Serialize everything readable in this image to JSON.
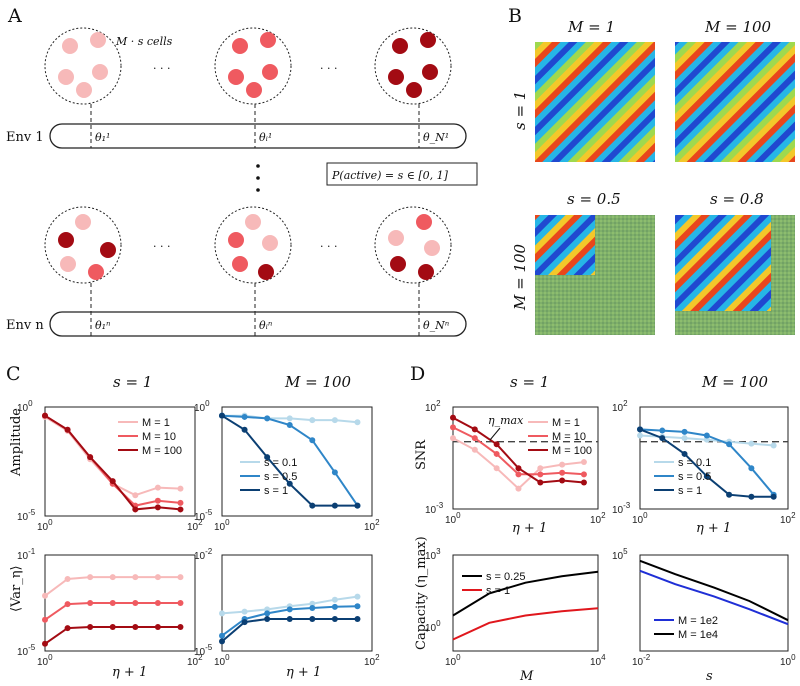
{
  "panel_letters": {
    "a": "A",
    "b": "B",
    "c": "C",
    "d": "D"
  },
  "panel_a": {
    "cells_label": "M · s cells",
    "dots": "· · ·",
    "env1_label": "Env 1",
    "envn_label": "Env n",
    "theta_1": "θ₁¹",
    "theta_i": "θᵢ¹",
    "theta_N": "θ_N¹",
    "thetan_1": "θ₁ⁿ",
    "thetan_i": "θᵢⁿ",
    "thetan_N": "θ_Nⁿ",
    "p_active": "P(active) = s ∈ [0, 1]",
    "colors": {
      "light": "#f7b9b9",
      "mid": "#ef5a60",
      "dark": "#a30b13"
    }
  },
  "panel_b": {
    "t_m1": "M = 1",
    "t_m100": "M = 100",
    "t_s05": "s = 0.5",
    "t_s08": "s = 0.8",
    "row_s1": "s = 1",
    "row_m100": "M = 100"
  },
  "chart_data": [
    {
      "type": "line",
      "title": "s = 1",
      "ylabel": "Amplitude",
      "xlabel": "",
      "xscale": "log",
      "yscale": "log",
      "xlim": [
        1,
        100
      ],
      "ylim": [
        1e-05,
        1
      ],
      "x_ticks": [
        "10^0",
        "10^2"
      ],
      "y_ticks": [
        "10^0",
        "10^-5"
      ],
      "legend": [
        "M = 1",
        "M = 10",
        "M = 100"
      ],
      "series": [
        {
          "name": "M = 1",
          "color": "#f7b9b9",
          "x": [
            1,
            2,
            4,
            8,
            16,
            32,
            64
          ],
          "y": [
            0.35,
            0.08,
            0.004,
            0.0003,
            9e-05,
            0.0002,
            0.00018
          ]
        },
        {
          "name": "M = 10",
          "color": "#ef5a60",
          "x": [
            1,
            2,
            4,
            8,
            16,
            32,
            64
          ],
          "y": [
            0.4,
            0.09,
            0.005,
            0.0003,
            3e-05,
            5e-05,
            4e-05
          ]
        },
        {
          "name": "M = 100",
          "color": "#a30b13",
          "x": [
            1,
            2,
            4,
            8,
            16,
            32,
            64
          ],
          "y": [
            0.4,
            0.09,
            0.005,
            0.0004,
            2e-05,
            2.5e-05,
            2e-05
          ]
        }
      ]
    },
    {
      "type": "line",
      "title": "M = 100",
      "ylabel": "",
      "xlabel": "",
      "xscale": "log",
      "yscale": "log",
      "xlim": [
        1,
        100
      ],
      "ylim": [
        1e-05,
        1
      ],
      "x_ticks": [
        "10^0",
        "10^2"
      ],
      "y_ticks": [
        "10^0",
        "10^-5"
      ],
      "legend": [
        "s = 0.1",
        "s = 0.5",
        "s = 1"
      ],
      "series": [
        {
          "name": "s = 0.1",
          "color": "#b7d9ea",
          "x": [
            1,
            2,
            4,
            8,
            16,
            32,
            64
          ],
          "y": [
            0.4,
            0.4,
            0.3,
            0.3,
            0.25,
            0.25,
            0.2
          ]
        },
        {
          "name": "s = 0.5",
          "color": "#2f86c8",
          "x": [
            1,
            2,
            4,
            8,
            16,
            32,
            64
          ],
          "y": [
            0.4,
            0.35,
            0.3,
            0.15,
            0.03,
            0.001,
            3e-05
          ]
        },
        {
          "name": "s = 1",
          "color": "#0b3f73",
          "x": [
            1,
            2,
            4,
            8,
            16,
            32,
            64
          ],
          "y": [
            0.4,
            0.09,
            0.005,
            0.0003,
            3e-05,
            3e-05,
            3e-05
          ]
        }
      ]
    },
    {
      "type": "line",
      "title": "",
      "ylabel": "⟨Var_η⟩",
      "xlabel": "η + 1",
      "xscale": "log",
      "yscale": "log",
      "xlim": [
        1,
        100
      ],
      "ylim": [
        1e-05,
        0.1
      ],
      "x_ticks": [
        "10^0",
        "10^2"
      ],
      "y_ticks": [
        "10^-1",
        "10^-5"
      ],
      "series": [
        {
          "name": "M = 1",
          "color": "#f7b9b9",
          "x": [
            1,
            2,
            4,
            8,
            16,
            32,
            64
          ],
          "y": [
            0.002,
            0.01,
            0.012,
            0.012,
            0.012,
            0.012,
            0.012
          ]
        },
        {
          "name": "M = 10",
          "color": "#ef5a60",
          "x": [
            1,
            2,
            4,
            8,
            16,
            32,
            64
          ],
          "y": [
            0.0002,
            0.0009,
            0.001,
            0.001,
            0.001,
            0.001,
            0.001
          ]
        },
        {
          "name": "M = 100",
          "color": "#a30b13",
          "x": [
            1,
            2,
            4,
            8,
            16,
            32,
            64
          ],
          "y": [
            2e-05,
            9e-05,
            0.0001,
            0.0001,
            0.0001,
            0.0001,
            0.0001
          ]
        }
      ]
    },
    {
      "type": "line",
      "title": "",
      "ylabel": "",
      "xlabel": "η + 1",
      "xscale": "log",
      "yscale": "log",
      "xlim": [
        1,
        100
      ],
      "ylim": [
        1e-05,
        0.01
      ],
      "x_ticks": [
        "10^0",
        "10^2"
      ],
      "y_ticks": [
        "10^-2",
        "10^-5"
      ],
      "series": [
        {
          "name": "s = 0.1",
          "color": "#b7d9ea",
          "x": [
            1,
            2,
            4,
            8,
            16,
            32,
            64
          ],
          "y": [
            0.00015,
            0.00017,
            0.0002,
            0.00025,
            0.0003,
            0.0004,
            0.0005
          ]
        },
        {
          "name": "s = 0.5",
          "color": "#2f86c8",
          "x": [
            1,
            2,
            4,
            8,
            16,
            32,
            64
          ],
          "y": [
            3e-05,
            0.0001,
            0.00015,
            0.0002,
            0.00022,
            0.00024,
            0.00025
          ]
        },
        {
          "name": "s = 1",
          "color": "#0b3f73",
          "x": [
            1,
            2,
            4,
            8,
            16,
            32,
            64
          ],
          "y": [
            2e-05,
            8e-05,
            0.0001,
            0.0001,
            0.0001,
            0.0001,
            0.0001
          ]
        }
      ]
    },
    {
      "type": "line",
      "title": "s = 1",
      "ylabel": "SNR",
      "xlabel": "η + 1",
      "xscale": "log",
      "yscale": "log",
      "xlim": [
        1,
        100
      ],
      "ylim": [
        0.001,
        100
      ],
      "x_ticks": [
        "10^0",
        "10^2"
      ],
      "y_ticks": [
        "10^2",
        "10^-3"
      ],
      "annotation": "η_max",
      "threshold": 2,
      "legend": [
        "M = 1",
        "M = 10",
        "M = 100"
      ],
      "series": [
        {
          "name": "M = 1",
          "color": "#f7b9b9",
          "x": [
            1,
            2,
            4,
            8,
            16,
            32,
            64
          ],
          "y": [
            3,
            0.8,
            0.1,
            0.01,
            0.1,
            0.15,
            0.2
          ]
        },
        {
          "name": "M = 10",
          "color": "#ef5a60",
          "x": [
            1,
            2,
            4,
            8,
            16,
            32,
            64
          ],
          "y": [
            10,
            3,
            0.5,
            0.05,
            0.05,
            0.06,
            0.05
          ]
        },
        {
          "name": "M = 100",
          "color": "#a30b13",
          "x": [
            1,
            2,
            4,
            8,
            16,
            32,
            64
          ],
          "y": [
            30,
            8,
            1.5,
            0.1,
            0.02,
            0.025,
            0.02
          ]
        }
      ]
    },
    {
      "type": "line",
      "title": "M = 100",
      "ylabel": "",
      "xlabel": "η + 1",
      "xscale": "log",
      "yscale": "log",
      "xlim": [
        1,
        100
      ],
      "ylim": [
        0.001,
        100
      ],
      "x_ticks": [
        "10^0",
        "10^2"
      ],
      "y_ticks": [
        "10^2",
        "10^-3"
      ],
      "threshold": 2,
      "legend": [
        "s = 0.1",
        "s = 0.5",
        "s = 1"
      ],
      "series": [
        {
          "name": "s = 0.1",
          "color": "#b7d9ea",
          "x": [
            1,
            2,
            4,
            8,
            16,
            32,
            64
          ],
          "y": [
            4,
            3.5,
            3,
            2.5,
            2,
            1.6,
            1.3
          ]
        },
        {
          "name": "s = 0.5",
          "color": "#2f86c8",
          "x": [
            1,
            2,
            4,
            8,
            16,
            32,
            64
          ],
          "y": [
            8,
            7,
            6,
            4,
            1.5,
            0.1,
            0.005
          ]
        },
        {
          "name": "s = 1",
          "color": "#0b3f73",
          "x": [
            1,
            2,
            4,
            8,
            16,
            32,
            64
          ],
          "y": [
            8,
            3,
            0.5,
            0.04,
            0.005,
            0.004,
            0.004
          ]
        }
      ]
    },
    {
      "type": "line",
      "title": "",
      "ylabel": "Capacity (η_max)",
      "xlabel": "M",
      "xscale": "log",
      "yscale": "log",
      "xlim": [
        1,
        10000
      ],
      "ylim": [
        0.1,
        1000
      ],
      "x_ticks": [
        "10^0",
        "10^4"
      ],
      "y_ticks": [
        "10^3",
        "10^0"
      ],
      "legend": [
        "s = 0.25",
        "s = 1"
      ],
      "series": [
        {
          "name": "s = 0.25",
          "color": "#000000",
          "x": [
            1,
            10,
            100,
            1000,
            10000
          ],
          "y": [
            3,
            25,
            70,
            130,
            200
          ]
        },
        {
          "name": "s = 1",
          "color": "#e0171d",
          "x": [
            1,
            10,
            100,
            1000,
            10000
          ],
          "y": [
            0.3,
            1.5,
            3,
            4.5,
            6
          ]
        }
      ]
    },
    {
      "type": "line",
      "title": "",
      "ylabel": "",
      "xlabel": "s",
      "xscale": "log",
      "yscale": "log",
      "xlim": [
        0.01,
        1
      ],
      "ylim": [
        1,
        100000
      ],
      "x_ticks": [
        "10^-2",
        "10^0"
      ],
      "y_ticks": [
        "10^5"
      ],
      "legend": [
        "M = 1e2",
        "M = 1e4"
      ],
      "series": [
        {
          "name": "M = 1e2",
          "color": "#1f2fd6",
          "x": [
            0.01,
            0.03,
            0.1,
            0.3,
            1
          ],
          "y": [
            15000,
            3000,
            700,
            150,
            25
          ]
        },
        {
          "name": "M = 1e4",
          "color": "#000000",
          "x": [
            0.01,
            0.03,
            0.1,
            0.3,
            1
          ],
          "y": [
            50000,
            10000,
            2000,
            400,
            40
          ]
        }
      ]
    }
  ]
}
